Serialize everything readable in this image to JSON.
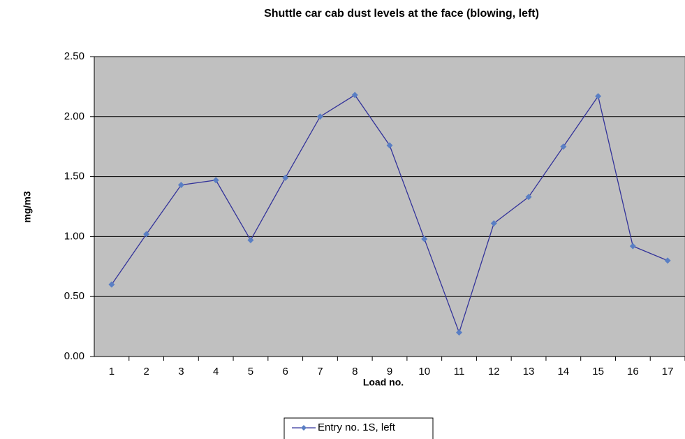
{
  "chart_data": {
    "type": "line",
    "title": "Shuttle car cab dust levels at the face (blowing, left)",
    "x_label": "Load no.",
    "y_label": "mg/m3",
    "categories": [
      "1",
      "2",
      "3",
      "4",
      "5",
      "6",
      "7",
      "8",
      "9",
      "10",
      "11",
      "12",
      "13",
      "14",
      "15",
      "16",
      "17"
    ],
    "series": [
      {
        "name": "Entry no. 1S, left",
        "color": "#33339a",
        "marker_color": "#5a7fc4",
        "values": [
          0.6,
          1.02,
          1.43,
          1.47,
          0.97,
          1.49,
          2.0,
          2.18,
          1.76,
          0.98,
          0.2,
          1.11,
          1.33,
          1.75,
          2.17,
          0.92,
          0.8
        ]
      }
    ],
    "ylim": [
      0,
      2.5
    ],
    "yticks": [
      {
        "value": 0,
        "label": "0.00"
      },
      {
        "value": 0.5,
        "label": "0.50"
      },
      {
        "value": 1,
        "label": "1.00"
      },
      {
        "value": 1.5,
        "label": "1.50"
      },
      {
        "value": 2,
        "label": "2.00"
      },
      {
        "value": 2.5,
        "label": "2.50"
      }
    ],
    "grid": true,
    "plot_background": "#c0c0c0",
    "legend": "bottom"
  }
}
